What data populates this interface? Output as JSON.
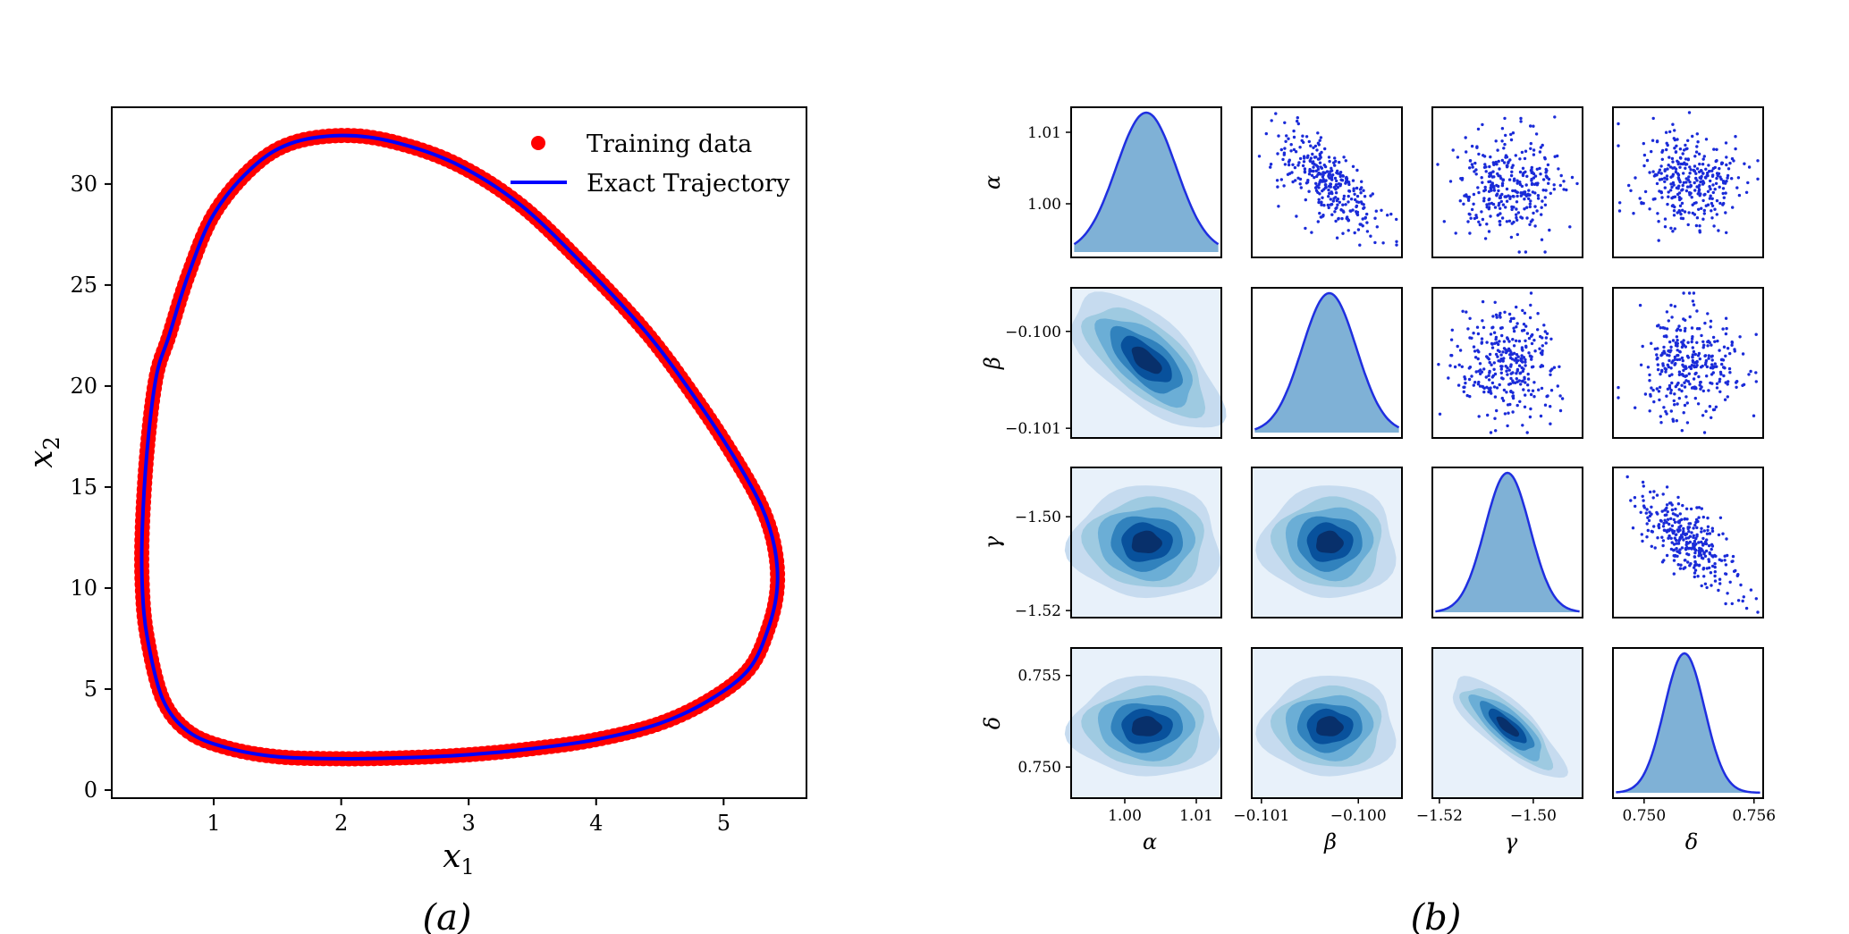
{
  "captions": {
    "a": "(a)",
    "b": "(b)"
  },
  "colors": {
    "training": "#ff0000",
    "exact": "#0000ff",
    "kde_fill": "#7fb1d6",
    "kde_line": "#1f2fe0",
    "scatter": "#1a2bd8",
    "contours": [
      "#e8f1fa",
      "#c6dbef",
      "#9ecae1",
      "#6baed6",
      "#3182bd",
      "#08519c",
      "#08306b"
    ]
  },
  "chart_data": [
    {
      "id": "a",
      "type": "line",
      "title": "",
      "xlabel": "x",
      "xlabel_sub": "1",
      "ylabel": "x",
      "ylabel_sub": "2",
      "xlim": [
        0.2,
        5.65
      ],
      "ylim": [
        -0.4,
        33.8
      ],
      "xticks": [
        1,
        2,
        3,
        4,
        5
      ],
      "yticks": [
        0,
        5,
        10,
        15,
        20,
        25,
        30
      ],
      "legend": {
        "position": "top-right",
        "entries": [
          "Training data",
          "Exact Trajectory"
        ]
      },
      "series": [
        {
          "name": "Exact Trajectory",
          "kind": "line",
          "x": [
            2.0,
            2.4,
            2.9,
            3.4,
            3.9,
            4.4,
            4.8,
            5.1,
            5.3,
            5.4,
            5.42,
            5.35,
            5.2,
            4.9,
            4.5,
            4.0,
            3.5,
            3.0,
            2.5,
            2.0,
            1.5,
            1.1,
            0.8,
            0.6,
            0.48,
            0.44,
            0.44,
            0.48,
            0.55,
            0.65,
            0.8,
            1.0,
            1.3,
            1.6,
            2.0
          ],
          "y": [
            32.4,
            32.1,
            31.0,
            29.0,
            26.0,
            22.6,
            19.2,
            16.3,
            14.0,
            12.0,
            10.0,
            8.0,
            6.0,
            4.5,
            3.3,
            2.5,
            2.05,
            1.75,
            1.6,
            1.55,
            1.65,
            2.1,
            2.9,
            4.5,
            7.5,
            10.0,
            13.0,
            17.0,
            20.5,
            22.5,
            25.5,
            28.5,
            30.8,
            32.0,
            32.4
          ]
        },
        {
          "name": "Training data",
          "kind": "scatter",
          "note_same_path": true
        }
      ]
    },
    {
      "id": "b",
      "type": "pairplot",
      "params": [
        "α",
        "β",
        "γ",
        "δ"
      ],
      "posterior_mean": [
        1.003,
        -0.1003,
        -1.5055,
        0.7522
      ],
      "posterior_sd": [
        0.0042,
        0.00028,
        0.0048,
        0.0011
      ],
      "correlations": [
        {
          "pair": [
            "α",
            "β"
          ],
          "r": -0.65
        },
        {
          "pair": [
            "γ",
            "δ"
          ],
          "r": -0.8
        },
        {
          "pair": [
            "α",
            "γ"
          ],
          "r": 0.0
        },
        {
          "pair": [
            "α",
            "δ"
          ],
          "r": 0.0
        },
        {
          "pair": [
            "β",
            "γ"
          ],
          "r": 0.0
        },
        {
          "pair": [
            "β",
            "δ"
          ],
          "r": 0.0
        }
      ],
      "axis_ranges": [
        [
          0.9925,
          1.0135
        ],
        [
          -0.1011,
          -0.09955
        ],
        [
          -1.5215,
          -1.4895
        ],
        [
          0.7483,
          0.7565
        ]
      ],
      "ticks": [
        {
          "values": [
            1.0,
            1.01
          ],
          "labels": [
            "1.00",
            "1.01"
          ]
        },
        {
          "values": [
            -0.101,
            -0.1
          ],
          "labels": [
            "−0.101",
            "−0.100"
          ]
        },
        {
          "values": [
            -1.52,
            -1.5
          ],
          "labels": [
            "−1.52",
            "−1.50"
          ]
        },
        {
          "values": [
            0.75,
            0.755
          ],
          "labels": [
            "0.750",
            "0.755"
          ]
        }
      ],
      "bottom_ticks": [
        {
          "values": [
            1.0,
            1.01
          ],
          "labels": [
            "1.00",
            "1.01"
          ]
        },
        {
          "values": [
            -0.101,
            -0.1
          ],
          "labels": [
            "−0.101",
            "−0.100"
          ]
        },
        {
          "values": [
            -1.52,
            -1.5
          ],
          "labels": [
            "−1.52",
            "−1.50"
          ]
        },
        {
          "values": [
            0.75,
            0.756
          ],
          "labels": [
            "0.750",
            "0.756"
          ]
        }
      ],
      "diagonal": "kde",
      "upper": "scatter",
      "lower": "kde_contour"
    }
  ]
}
